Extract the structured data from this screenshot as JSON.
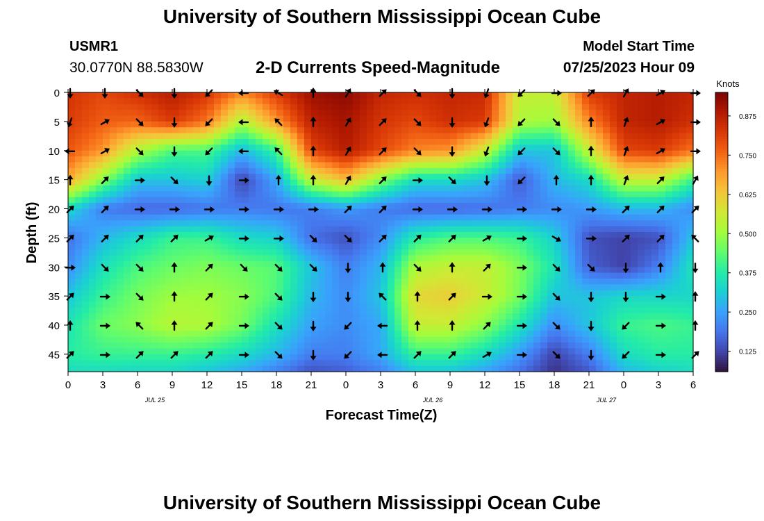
{
  "header": {
    "title": "University of Southern Mississippi Ocean Cube",
    "station_id": "USMR1",
    "coordinates": "30.0770N  88.5830W",
    "subtitle": "2-D Currents Speed-Magnitude",
    "model_start_label": "Model Start Time",
    "model_start_value": "07/25/2023 Hour 09"
  },
  "footer": {
    "title": "University of Southern Mississippi Ocean Cube"
  },
  "chart_data": {
    "type": "heatmap",
    "title": "2-D Currents Speed-Magnitude",
    "xlabel": "Forecast Time(Z)",
    "ylabel": "Depth (ft)",
    "x_tick_labels": [
      "0",
      "3",
      "6",
      "9",
      "12",
      "15",
      "18",
      "21",
      "0",
      "3",
      "6",
      "9",
      "12",
      "15",
      "18",
      "21",
      "0",
      "3",
      "6"
    ],
    "x_date_labels": [
      {
        "label": "JUL 25",
        "at_tick": 2.5
      },
      {
        "label": "JUL 26",
        "at_tick": 10.5
      },
      {
        "label": "JUL 27",
        "at_tick": 15.5
      }
    ],
    "xlim": [
      0,
      54
    ],
    "y_ticks": [
      0,
      5,
      10,
      15,
      20,
      25,
      30,
      35,
      40,
      45
    ],
    "ylim": [
      0,
      48
    ],
    "colorbar": {
      "label": "Knots",
      "ticks": [
        "0.125",
        "0.250",
        "0.375",
        "0.500",
        "0.625",
        "0.750",
        "0.875"
      ],
      "range": [
        0.06,
        0.95
      ],
      "colormap": [
        "#30123b",
        "#4145ab",
        "#4675ed",
        "#39a2fc",
        "#1bcfd4",
        "#24eca6",
        "#61fc6c",
        "#a4fc3b",
        "#d1e834",
        "#f3c63a",
        "#fe9b2d",
        "#f36315",
        "#d93806",
        "#b11901",
        "#7a0403"
      ]
    },
    "speed_grid": {
      "rows_depth_ft": [
        0,
        5,
        10,
        15,
        20,
        25,
        30,
        35,
        40,
        45,
        48
      ],
      "cols_hour": [
        0,
        3,
        6,
        9,
        12,
        15,
        18,
        21,
        24,
        27,
        30,
        33,
        36,
        39,
        42,
        45,
        48,
        51,
        54
      ],
      "values": [
        [
          0.83,
          0.8,
          0.84,
          0.88,
          0.83,
          0.72,
          0.82,
          0.91,
          0.93,
          0.86,
          0.84,
          0.86,
          0.85,
          0.55,
          0.55,
          0.82,
          0.86,
          0.88,
          0.86
        ],
        [
          0.82,
          0.77,
          0.76,
          0.82,
          0.74,
          0.52,
          0.7,
          0.87,
          0.9,
          0.83,
          0.8,
          0.84,
          0.82,
          0.52,
          0.5,
          0.72,
          0.86,
          0.88,
          0.84
        ],
        [
          0.78,
          0.7,
          0.52,
          0.42,
          0.42,
          0.28,
          0.4,
          0.8,
          0.88,
          0.8,
          0.72,
          0.7,
          0.55,
          0.3,
          0.3,
          0.55,
          0.8,
          0.82,
          0.74
        ],
        [
          0.68,
          0.48,
          0.3,
          0.3,
          0.32,
          0.12,
          0.26,
          0.55,
          0.65,
          0.48,
          0.34,
          0.34,
          0.3,
          0.15,
          0.28,
          0.34,
          0.55,
          0.55,
          0.4
        ],
        [
          0.34,
          0.2,
          0.17,
          0.17,
          0.19,
          0.2,
          0.19,
          0.2,
          0.24,
          0.2,
          0.17,
          0.17,
          0.18,
          0.2,
          0.22,
          0.24,
          0.28,
          0.28,
          0.22
        ],
        [
          0.18,
          0.28,
          0.34,
          0.4,
          0.4,
          0.34,
          0.32,
          0.18,
          0.14,
          0.22,
          0.38,
          0.42,
          0.42,
          0.4,
          0.32,
          0.14,
          0.12,
          0.14,
          0.3
        ],
        [
          0.22,
          0.35,
          0.42,
          0.45,
          0.47,
          0.45,
          0.43,
          0.3,
          0.2,
          0.28,
          0.52,
          0.55,
          0.55,
          0.47,
          0.36,
          0.16,
          0.12,
          0.2,
          0.36
        ],
        [
          0.3,
          0.4,
          0.46,
          0.5,
          0.5,
          0.48,
          0.42,
          0.28,
          0.22,
          0.3,
          0.6,
          0.62,
          0.56,
          0.46,
          0.3,
          0.3,
          0.33,
          0.33,
          0.33
        ],
        [
          0.36,
          0.45,
          0.48,
          0.53,
          0.52,
          0.46,
          0.35,
          0.25,
          0.22,
          0.26,
          0.55,
          0.55,
          0.48,
          0.36,
          0.22,
          0.3,
          0.4,
          0.42,
          0.4
        ],
        [
          0.38,
          0.4,
          0.4,
          0.4,
          0.38,
          0.34,
          0.28,
          0.2,
          0.2,
          0.26,
          0.4,
          0.4,
          0.34,
          0.24,
          0.12,
          0.2,
          0.34,
          0.38,
          0.38
        ],
        [
          0.34,
          0.34,
          0.33,
          0.33,
          0.3,
          0.26,
          0.2,
          0.14,
          0.16,
          0.2,
          0.3,
          0.3,
          0.25,
          0.18,
          0.1,
          0.15,
          0.28,
          0.32,
          0.34
        ]
      ]
    },
    "vectors": {
      "depths_ft": [
        0,
        5,
        10,
        15,
        20,
        25,
        30,
        35,
        40,
        45
      ],
      "hours": [
        0,
        3,
        6,
        9,
        12,
        15,
        18,
        21,
        24,
        27,
        30,
        33,
        36,
        39,
        42,
        45,
        48,
        51,
        54
      ],
      "direction_deg": [
        [
          180,
          180,
          135,
          180,
          225,
          270,
          300,
          0,
          30,
          45,
          135,
          180,
          200,
          225,
          90,
          45,
          30,
          60,
          90
        ],
        [
          200,
          60,
          135,
          180,
          225,
          270,
          315,
          0,
          30,
          45,
          135,
          180,
          200,
          225,
          135,
          0,
          20,
          60,
          90
        ],
        [
          270,
          60,
          135,
          180,
          225,
          270,
          315,
          0,
          30,
          45,
          135,
          180,
          200,
          225,
          135,
          0,
          20,
          60,
          90
        ],
        [
          0,
          45,
          90,
          135,
          180,
          90,
          0,
          0,
          30,
          45,
          90,
          135,
          180,
          225,
          0,
          0,
          20,
          45,
          30
        ],
        [
          45,
          45,
          90,
          90,
          90,
          90,
          90,
          90,
          45,
          45,
          90,
          90,
          90,
          90,
          90,
          90,
          45,
          45,
          45
        ],
        [
          45,
          45,
          45,
          45,
          60,
          90,
          90,
          135,
          135,
          45,
          45,
          45,
          60,
          90,
          120,
          90,
          45,
          45,
          315
        ],
        [
          90,
          135,
          135,
          0,
          45,
          135,
          135,
          135,
          180,
          0,
          135,
          0,
          45,
          90,
          135,
          135,
          180,
          0,
          180
        ],
        [
          45,
          90,
          135,
          0,
          45,
          90,
          135,
          180,
          180,
          315,
          0,
          45,
          90,
          90,
          135,
          180,
          180,
          90,
          0
        ],
        [
          0,
          90,
          315,
          0,
          45,
          90,
          135,
          180,
          225,
          270,
          0,
          0,
          45,
          90,
          135,
          180,
          225,
          90,
          0
        ],
        [
          45,
          90,
          45,
          45,
          45,
          90,
          135,
          180,
          225,
          270,
          45,
          45,
          60,
          90,
          135,
          180,
          225,
          90,
          45
        ]
      ]
    }
  }
}
